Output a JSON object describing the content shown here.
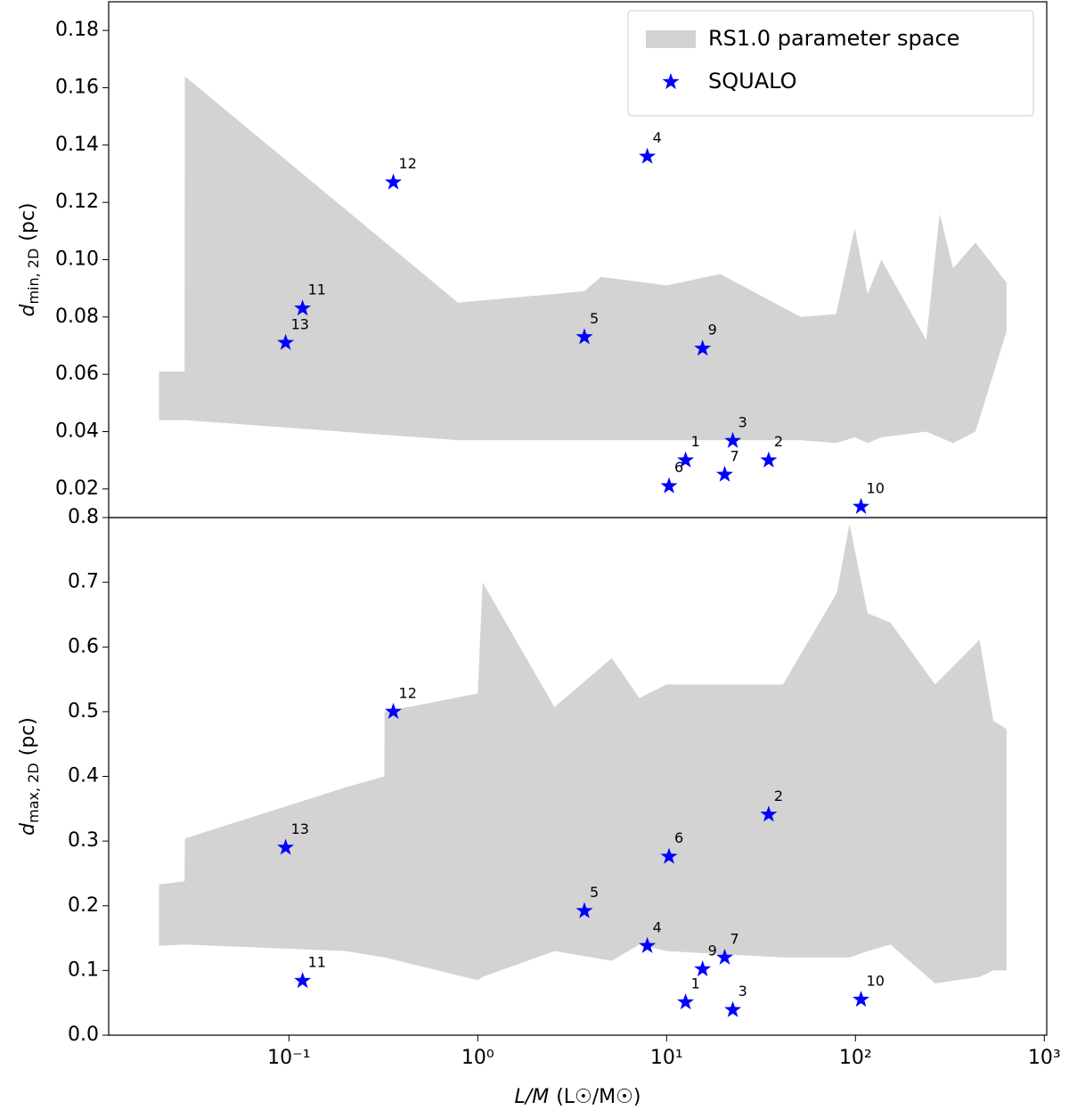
{
  "chart_data": [
    {
      "type": "scatter",
      "xscale": "log",
      "xlim": [
        0.0111,
        1030
      ],
      "ylim": [
        0.01,
        0.19
      ],
      "yticks": [
        0.02,
        0.04,
        0.06,
        0.08,
        {
          "value": 0.1,
          "label": "0.10"
        },
        0.12,
        0.14,
        0.16,
        0.18
      ],
      "ylabel": {
        "symbol": "d",
        "subscript": "min, 2D",
        "unit": "(pc)"
      },
      "legend": "upper right",
      "series": [
        {
          "name": "RS1.0 parameter space",
          "type": "area",
          "color": "#d3d3d3",
          "x": [
            0.0205,
            0.028,
            0.0281,
            0.785,
            3.67,
            4.49,
            10,
            19.2,
            51.4,
            79,
            99,
            116,
            137,
            237,
            279,
            329,
            432,
            631
          ],
          "upper": [
            0.061,
            0.061,
            0.164,
            0.085,
            0.089,
            0.094,
            0.091,
            0.095,
            0.08,
            0.081,
            0.111,
            0.088,
            0.1,
            0.072,
            0.116,
            0.097,
            0.106,
            0.092
          ],
          "lower": [
            0.044,
            0.044,
            0.044,
            0.037,
            0.037,
            0.037,
            0.037,
            0.037,
            0.037,
            0.036,
            0.038,
            0.036,
            0.038,
            0.04,
            0.038,
            0.036,
            0.04,
            0.075
          ]
        },
        {
          "name": "SQUALO",
          "type": "scatter",
          "marker": "star",
          "color": "#0000ff",
          "x": [
            12.6,
            34.7,
            22.4,
            7.9,
            3.67,
            10.3,
            20.3,
            15.5,
            107,
            0.118,
            0.357,
            0.096
          ],
          "values": [
            0.03,
            0.03,
            0.0368,
            0.136,
            0.073,
            0.021,
            0.025,
            0.069,
            0.0138,
            0.083,
            0.127,
            0.071
          ],
          "labels": [
            "1",
            "2",
            "3",
            "4",
            "5",
            "6",
            "7",
            "9",
            "10",
            "11",
            "12",
            "13"
          ]
        }
      ]
    },
    {
      "type": "scatter",
      "xscale": "log",
      "xlim": [
        0.0111,
        1030
      ],
      "ylim": [
        0,
        0.8
      ],
      "xticks": [
        {
          "value": 0.1,
          "label": "10⁻¹"
        },
        {
          "value": 1,
          "label": "10⁰"
        },
        {
          "value": 10,
          "label": "10¹"
        },
        {
          "value": 100,
          "label": "10²"
        },
        {
          "value": 1000,
          "label": "10³"
        }
      ],
      "yticks": [
        {
          "value": 0,
          "label": "0.0"
        },
        0.1,
        0.2,
        0.3,
        0.4,
        0.5,
        0.6,
        0.7,
        0.8
      ],
      "ylabel": {
        "symbol": "d",
        "subscript": "max, 2D",
        "unit": "(pc)"
      },
      "xlabel": {
        "symbol": "L/M",
        "unit": "(L☉/M☉)"
      },
      "series": [
        {
          "type": "area",
          "color": "#d3d3d3",
          "x": [
            0.0205,
            0.028,
            0.0281,
            0.2,
            0.32,
            0.321,
            1.0,
            1.06,
            2.55,
            5.13,
            7.16,
            10,
            41.3,
            79.5,
            93,
            116,
            153,
            264,
            454,
            537,
            631
          ],
          "upper": [
            0.233,
            0.238,
            0.304,
            0.383,
            0.4,
            0.5,
            0.528,
            0.7,
            0.507,
            0.583,
            0.521,
            0.542,
            0.542,
            0.683,
            0.79,
            0.652,
            0.638,
            0.542,
            0.611,
            0.486,
            0.473
          ],
          "lower": [
            0.138,
            0.14,
            0.14,
            0.13,
            0.12,
            0.12,
            0.085,
            0.09,
            0.13,
            0.115,
            0.14,
            0.13,
            0.12,
            0.12,
            0.12,
            0.13,
            0.14,
            0.08,
            0.09,
            0.1,
            0.1
          ]
        },
        {
          "type": "scatter",
          "marker": "star",
          "color": "#0000ff",
          "x": [
            12.6,
            34.7,
            22.4,
            7.9,
            3.67,
            10.3,
            20.3,
            15.5,
            107,
            0.118,
            0.357,
            0.096
          ],
          "values": [
            0.051,
            0.341,
            0.039,
            0.138,
            0.192,
            0.276,
            0.12,
            0.102,
            0.055,
            0.084,
            0.5,
            0.29
          ],
          "labels": [
            "1",
            "2",
            "3",
            "4",
            "5",
            "6",
            "7",
            "9",
            "10",
            "11",
            "12",
            "13"
          ]
        }
      ]
    }
  ]
}
